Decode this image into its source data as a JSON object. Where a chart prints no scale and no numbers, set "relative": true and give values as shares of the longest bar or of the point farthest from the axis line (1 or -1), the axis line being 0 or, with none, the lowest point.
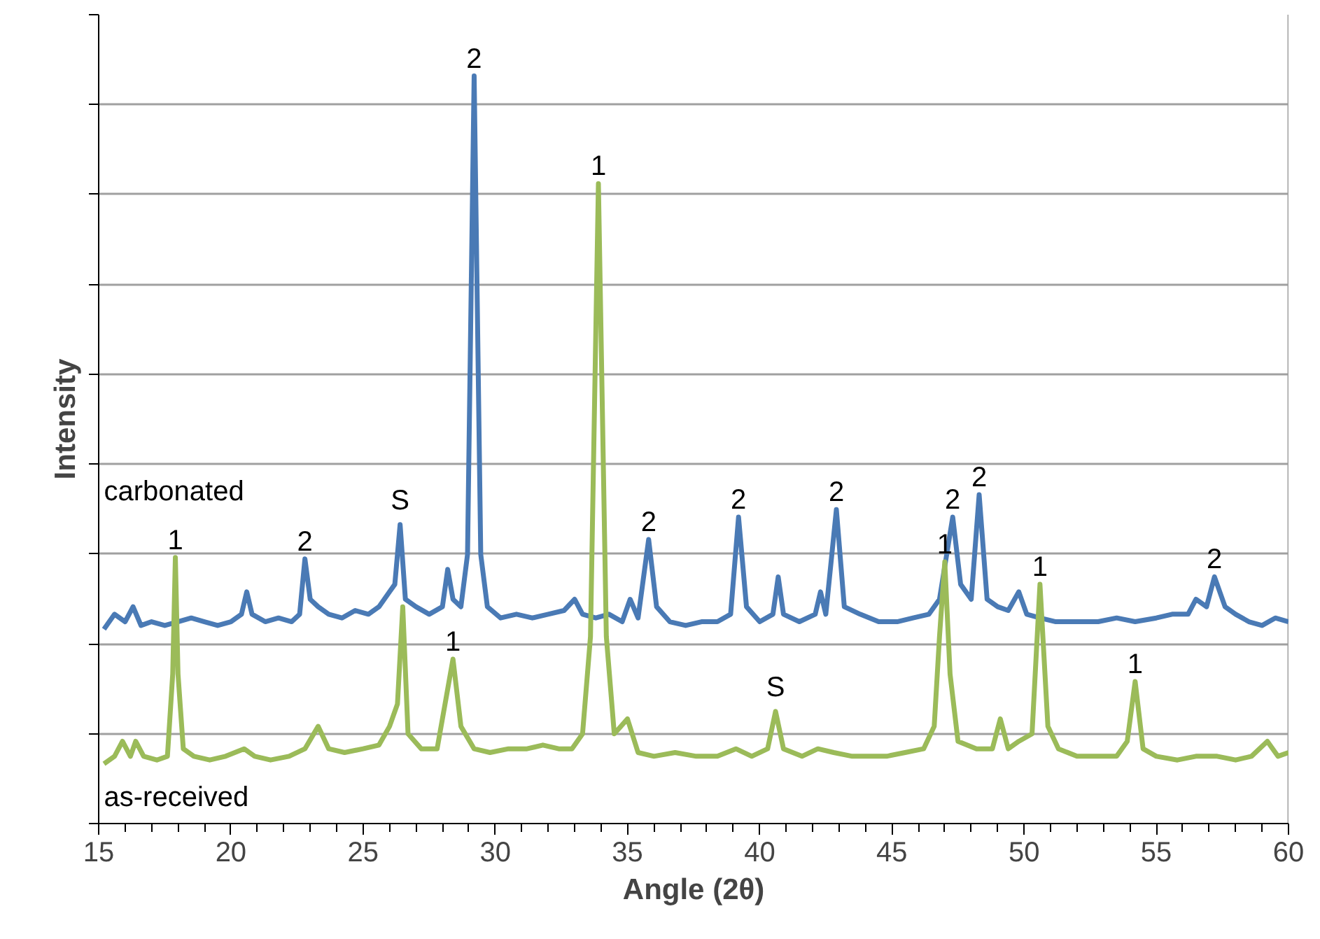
{
  "chart_data": {
    "type": "line",
    "relative": true,
    "xlabel": "Angle (2θ)",
    "ylabel": "Intensity",
    "xlim": [
      15,
      60
    ],
    "xticks": [
      15,
      20,
      25,
      30,
      35,
      40,
      45,
      50,
      55,
      60
    ],
    "grid": "y",
    "legend": false,
    "series": [
      {
        "name": "carbonated",
        "color": "#4a7ab5",
        "x": [
          15.2,
          15.6,
          16.0,
          16.3,
          16.6,
          17.0,
          17.5,
          18.0,
          18.5,
          19.0,
          19.5,
          20.0,
          20.4,
          20.6,
          20.8,
          21.3,
          21.8,
          22.3,
          22.6,
          22.8,
          23.0,
          23.3,
          23.7,
          24.2,
          24.7,
          25.2,
          25.6,
          26.0,
          26.2,
          26.4,
          26.6,
          27.0,
          27.5,
          28.0,
          28.2,
          28.4,
          28.7,
          28.95,
          29.2,
          29.45,
          29.7,
          30.2,
          30.8,
          31.4,
          32.0,
          32.6,
          33.0,
          33.3,
          33.8,
          34.3,
          34.8,
          35.1,
          35.4,
          35.8,
          36.1,
          36.6,
          37.2,
          37.8,
          38.4,
          38.9,
          39.2,
          39.5,
          40.0,
          40.5,
          40.7,
          40.9,
          41.5,
          42.1,
          42.3,
          42.5,
          42.9,
          43.2,
          43.8,
          44.5,
          45.2,
          45.8,
          46.4,
          46.8,
          47.3,
          47.6,
          48.0,
          48.3,
          48.6,
          49.0,
          49.4,
          49.8,
          50.1,
          50.6,
          51.2,
          52.0,
          52.8,
          53.5,
          54.2,
          55.0,
          55.6,
          56.2,
          56.5,
          56.9,
          57.2,
          57.6,
          58.0,
          58.5,
          59.0,
          59.5,
          60.0
        ],
        "values": [
          0.26,
          0.28,
          0.27,
          0.29,
          0.265,
          0.27,
          0.265,
          0.27,
          0.275,
          0.27,
          0.265,
          0.27,
          0.28,
          0.31,
          0.28,
          0.27,
          0.275,
          0.27,
          0.28,
          0.354,
          0.3,
          0.29,
          0.28,
          0.275,
          0.285,
          0.28,
          0.29,
          0.31,
          0.32,
          0.4,
          0.3,
          0.29,
          0.28,
          0.29,
          0.34,
          0.3,
          0.29,
          0.36,
          1.0,
          0.36,
          0.29,
          0.275,
          0.28,
          0.275,
          0.28,
          0.285,
          0.3,
          0.28,
          0.275,
          0.28,
          0.27,
          0.3,
          0.275,
          0.38,
          0.29,
          0.27,
          0.265,
          0.27,
          0.27,
          0.28,
          0.41,
          0.29,
          0.27,
          0.28,
          0.33,
          0.28,
          0.27,
          0.28,
          0.31,
          0.28,
          0.42,
          0.29,
          0.28,
          0.27,
          0.27,
          0.275,
          0.28,
          0.3,
          0.41,
          0.32,
          0.3,
          0.44,
          0.3,
          0.29,
          0.285,
          0.31,
          0.28,
          0.275,
          0.27,
          0.27,
          0.27,
          0.275,
          0.27,
          0.275,
          0.28,
          0.28,
          0.3,
          0.29,
          0.33,
          0.29,
          0.28,
          0.27,
          0.265,
          0.275,
          0.27
        ]
      },
      {
        "name": "as-received",
        "color": "#9bbb59",
        "x": [
          15.2,
          15.6,
          15.9,
          16.2,
          16.4,
          16.7,
          17.2,
          17.6,
          17.8,
          17.9,
          18.0,
          18.2,
          18.6,
          19.2,
          19.8,
          20.5,
          20.9,
          21.5,
          22.2,
          22.8,
          23.3,
          23.7,
          24.3,
          25.0,
          25.6,
          26.0,
          26.3,
          26.5,
          26.7,
          27.2,
          27.8,
          28.1,
          28.4,
          28.7,
          29.2,
          29.8,
          30.5,
          31.2,
          31.8,
          32.4,
          32.9,
          33.3,
          33.6,
          33.9,
          34.2,
          34.5,
          35.0,
          35.4,
          36.0,
          36.8,
          37.6,
          38.4,
          39.1,
          39.7,
          40.3,
          40.6,
          40.9,
          41.6,
          42.2,
          42.8,
          43.5,
          44.2,
          44.8,
          45.5,
          46.2,
          46.6,
          46.8,
          47.0,
          47.2,
          47.5,
          48.2,
          48.8,
          49.1,
          49.4,
          49.8,
          50.3,
          50.6,
          50.9,
          51.3,
          52.0,
          52.8,
          53.5,
          53.9,
          54.2,
          54.5,
          55.0,
          55.8,
          56.5,
          57.3,
          58.0,
          58.6,
          59.2,
          59.6,
          60.0
        ],
        "values": [
          0.08,
          0.09,
          0.11,
          0.09,
          0.11,
          0.09,
          0.085,
          0.09,
          0.2,
          0.356,
          0.2,
          0.1,
          0.09,
          0.085,
          0.09,
          0.1,
          0.09,
          0.085,
          0.09,
          0.1,
          0.13,
          0.1,
          0.095,
          0.1,
          0.105,
          0.13,
          0.16,
          0.29,
          0.12,
          0.1,
          0.1,
          0.16,
          0.22,
          0.13,
          0.1,
          0.095,
          0.1,
          0.1,
          0.105,
          0.1,
          0.1,
          0.12,
          0.25,
          0.856,
          0.25,
          0.12,
          0.14,
          0.095,
          0.09,
          0.095,
          0.09,
          0.09,
          0.1,
          0.09,
          0.1,
          0.15,
          0.1,
          0.09,
          0.1,
          0.095,
          0.09,
          0.09,
          0.09,
          0.095,
          0.1,
          0.13,
          0.25,
          0.35,
          0.2,
          0.11,
          0.1,
          0.1,
          0.14,
          0.1,
          0.11,
          0.12,
          0.32,
          0.13,
          0.1,
          0.09,
          0.09,
          0.09,
          0.11,
          0.19,
          0.1,
          0.09,
          0.085,
          0.09,
          0.09,
          0.085,
          0.09,
          0.11,
          0.09,
          0.095
        ]
      }
    ],
    "annotations": [
      {
        "text": "2",
        "x": 29.2,
        "y": 1.0
      },
      {
        "text": "1",
        "x": 33.9,
        "y": 0.856
      },
      {
        "text": "S",
        "x": 26.4,
        "y": 0.4
      },
      {
        "text": "2",
        "x": 22.8,
        "y": 0.354
      },
      {
        "text": "2",
        "x": 35.8,
        "y": 0.38
      },
      {
        "text": "2",
        "x": 39.2,
        "y": 0.41
      },
      {
        "text": "2",
        "x": 42.9,
        "y": 0.42
      },
      {
        "text": "2",
        "x": 47.3,
        "y": 0.41
      },
      {
        "text": "2",
        "x": 48.3,
        "y": 0.44
      },
      {
        "text": "2",
        "x": 57.2,
        "y": 0.33
      },
      {
        "text": "1",
        "x": 17.9,
        "y": 0.356
      },
      {
        "text": "1",
        "x": 28.4,
        "y": 0.22
      },
      {
        "text": "S",
        "x": 40.6,
        "y": 0.15
      },
      {
        "text": "1",
        "x": 47.0,
        "y": 0.35
      },
      {
        "text": "1",
        "x": 50.6,
        "y": 0.32
      },
      {
        "text": "1",
        "x": 54.2,
        "y": 0.19
      }
    ]
  }
}
